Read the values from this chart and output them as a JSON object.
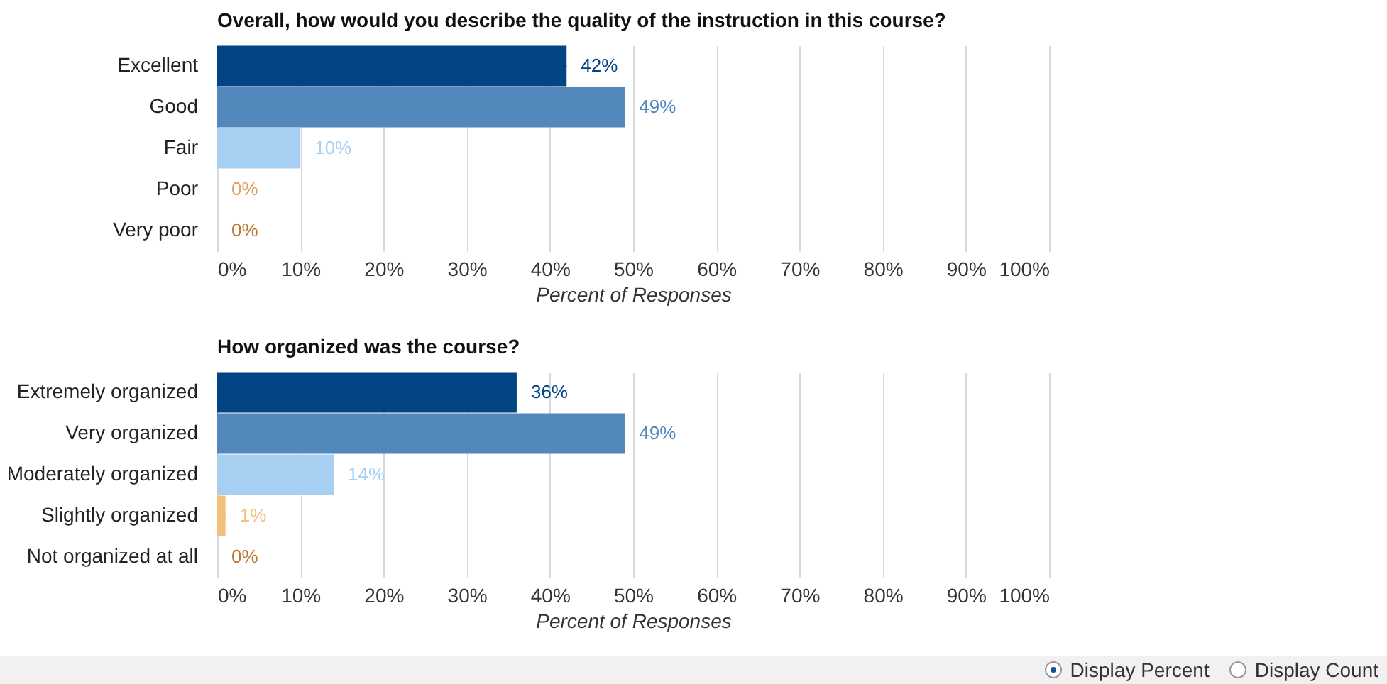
{
  "chart_data": [
    {
      "type": "bar",
      "orientation": "horizontal",
      "title": "Overall, how would you describe the quality of the instruction in this course?",
      "xlabel": "Percent of Responses",
      "categories": [
        "Excellent",
        "Good",
        "Fair",
        "Poor",
        "Very poor"
      ],
      "values": [
        42,
        49,
        10,
        0,
        0
      ],
      "colors": [
        "#034584",
        "#5288bc",
        "#a6cff2",
        "#e0a060",
        "#b8782e"
      ],
      "value_labels": [
        "42%",
        "49%",
        "10%",
        "0%",
        "0%"
      ],
      "xlim": [
        0,
        100
      ],
      "xticks": [
        {
          "value": 0,
          "label": "0%"
        },
        {
          "value": 10,
          "label": "10%"
        },
        {
          "value": 20,
          "label": "20%"
        },
        {
          "value": 30,
          "label": "30%"
        },
        {
          "value": 40,
          "label": "40%"
        },
        {
          "value": 50,
          "label": "50%"
        },
        {
          "value": 60,
          "label": "60%"
        },
        {
          "value": 70,
          "label": "70%"
        },
        {
          "value": 80,
          "label": "80%"
        },
        {
          "value": 90,
          "label": "90%"
        },
        {
          "value": 100,
          "label": "100%"
        }
      ],
      "grid": "x"
    },
    {
      "type": "bar",
      "orientation": "horizontal",
      "title": "How organized was the course?",
      "xlabel": "Percent of Responses",
      "categories": [
        "Extremely organized",
        "Very organized",
        "Moderately organized",
        "Slightly organized",
        "Not organized at all"
      ],
      "values": [
        36,
        49,
        14,
        1,
        0
      ],
      "colors": [
        "#034584",
        "#5288bc",
        "#a6cff2",
        "#f2c07a",
        "#b8782e"
      ],
      "value_labels": [
        "36%",
        "49%",
        "14%",
        "1%",
        "0%"
      ],
      "xlim": [
        0,
        100
      ],
      "xticks": [
        {
          "value": 0,
          "label": "0%"
        },
        {
          "value": 10,
          "label": "10%"
        },
        {
          "value": 20,
          "label": "20%"
        },
        {
          "value": 30,
          "label": "30%"
        },
        {
          "value": 40,
          "label": "40%"
        },
        {
          "value": 50,
          "label": "50%"
        },
        {
          "value": 60,
          "label": "60%"
        },
        {
          "value": 70,
          "label": "70%"
        },
        {
          "value": 80,
          "label": "80%"
        },
        {
          "value": 90,
          "label": "90%"
        },
        {
          "value": 100,
          "label": "100%"
        }
      ],
      "grid": "x",
      "annotations": [
        "Display Percent",
        "Display Count"
      ]
    }
  ]
}
